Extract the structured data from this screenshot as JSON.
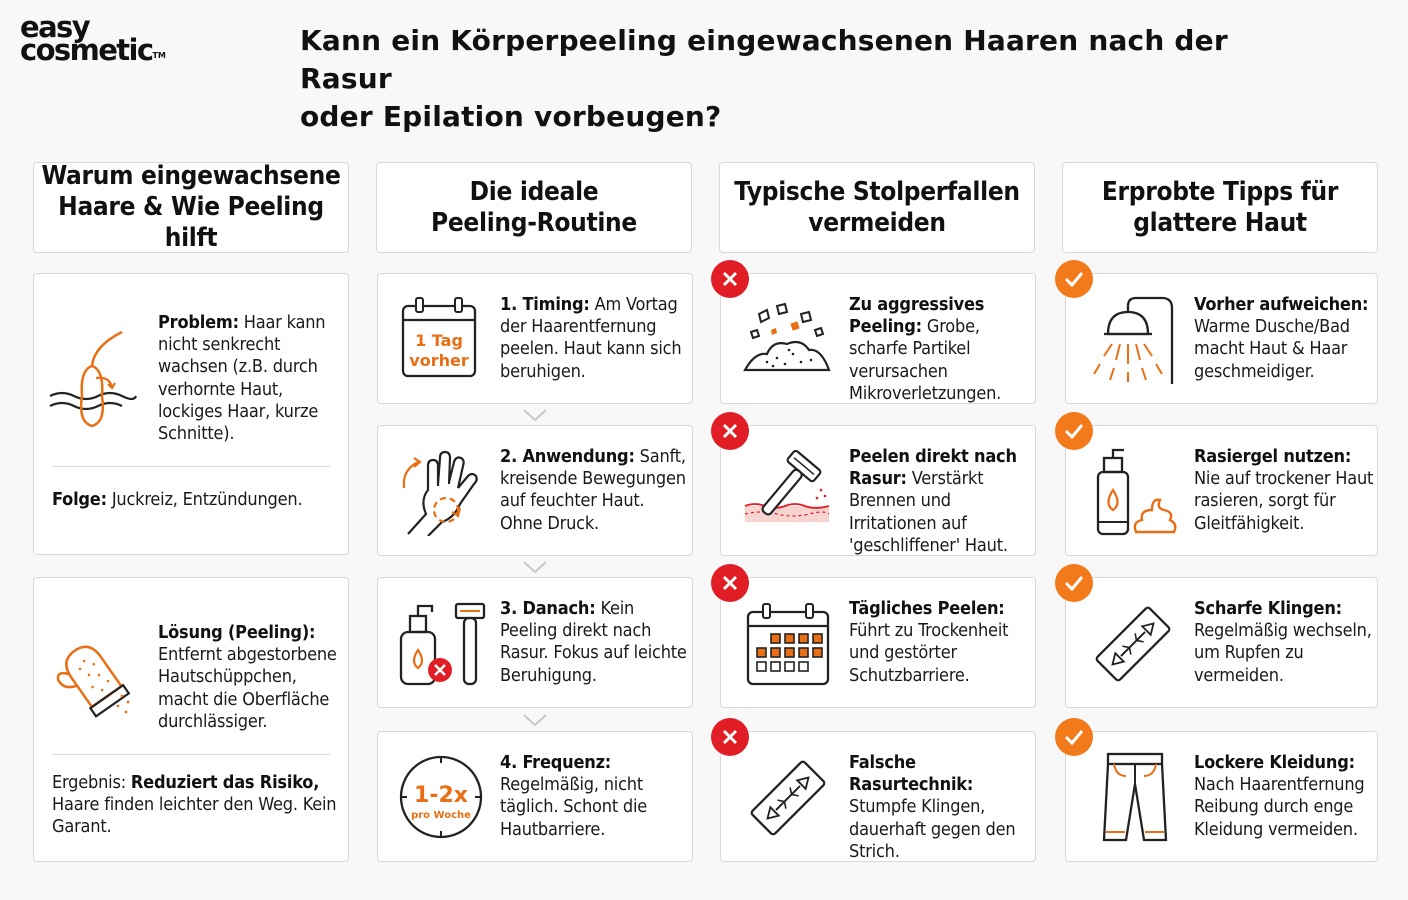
{
  "brand": {
    "line1": "easy",
    "line2": "cosmetic",
    "tm": "TM"
  },
  "title": "Kann ein Körperpeeling eingewachsenen Haaren nach der Rasur\noder Epilation vorbeugen?",
  "columns": [
    "Warum eingewachsene\nHaare & Wie Peeling hilft",
    "Die ideale\nPeeling-Routine",
    "Typische Stolperfallen\nvermeiden",
    "Erprobte Tipps für\nglattere Haut"
  ],
  "why": {
    "problem": {
      "label": "Problem:",
      "text": " Haar kann nicht senkrecht wachsen (z.B. durch verhornte Haut, lockiges Haar, kurze Schnitte)."
    },
    "consequence": {
      "label": "Folge:",
      "text": " Juckreiz, Entzündungen."
    },
    "solution": {
      "label": "Lösung (Peeling):",
      "text": " Entfernt abgestorbene Hautschüppchen, macht die Oberfläche durchlässiger."
    },
    "result": {
      "label": "Ergebnis: ",
      "bold": "Reduziert das Risiko,",
      "text": " Haare finden leichter den Weg. Kein Garant."
    }
  },
  "routine": [
    {
      "label": "1. Timing:",
      "text": " Am Vortag der Haarentfernung peelen. Haut kann sich beruhigen.",
      "icon_text_1": "1 Tag",
      "icon_text_2": "vorher",
      "icon": "calendar-icon"
    },
    {
      "label": "2. Anwendung:",
      "text": " Sanft, kreisende Bewegungen auf feuchter Haut. Ohne Druck.",
      "icon": "hand-circle-icon"
    },
    {
      "label": "3. Danach:",
      "text": " Kein Peeling direkt nach Rasur. Fokus auf leichte Beruhigung.",
      "icon": "lotion-razor-icon"
    },
    {
      "label": "4. Frequenz:",
      "text": " Regelmäßig, nicht täglich. Schont die Hautbarriere.",
      "icon_text_1": "1-2x",
      "icon_text_2": "pro Woche",
      "icon": "clock-icon"
    }
  ],
  "pitfalls": [
    {
      "label": "Zu aggressives Peeling:",
      "text": " Grobe, scharfe Partikel verursachen Mikroverletzungen.",
      "icon": "scrub-particles-icon"
    },
    {
      "label": "Peelen direkt nach Rasur:",
      "text": " Verstärkt Brennen und Irritationen auf 'geschliffener' Haut.",
      "icon": "razor-skin-icon"
    },
    {
      "label": "Tägliches Peelen:",
      "text": " Führt zu Trockenheit und gestörter Schutzbarriere.",
      "icon": "calendar-grid-icon"
    },
    {
      "label": "Falsche Rasurtechnik:",
      "text": " Stumpfe Klingen, dauerhaft gegen den Strich.",
      "icon": "razor-blade-icon"
    }
  ],
  "tips": [
    {
      "label": "Vorher aufweichen:",
      "text": " Warme Dusche/Bad macht Haut & Haar geschmeidiger.",
      "icon": "shower-icon"
    },
    {
      "label": "Rasiergel nutzen:",
      "text": " Nie auf trockener Haut rasieren, sorgt für Gleitfähigkeit.",
      "icon": "shaving-gel-icon"
    },
    {
      "label": "Scharfe Klingen:",
      "text": " Regelmäßig wechseln, um Rupfen zu vermeiden.",
      "icon": "razor-blade-icon"
    },
    {
      "label": "Lockere Kleidung:",
      "text": " Nach Haarentfernung Reibung durch enge Kleidung vermeiden.",
      "icon": "trousers-icon"
    }
  ],
  "colors": {
    "accent": "#e86f13",
    "error": "#e11d26",
    "check": "#f27a1a",
    "border": "#d8d8d8",
    "background": "#f8f8f8"
  }
}
